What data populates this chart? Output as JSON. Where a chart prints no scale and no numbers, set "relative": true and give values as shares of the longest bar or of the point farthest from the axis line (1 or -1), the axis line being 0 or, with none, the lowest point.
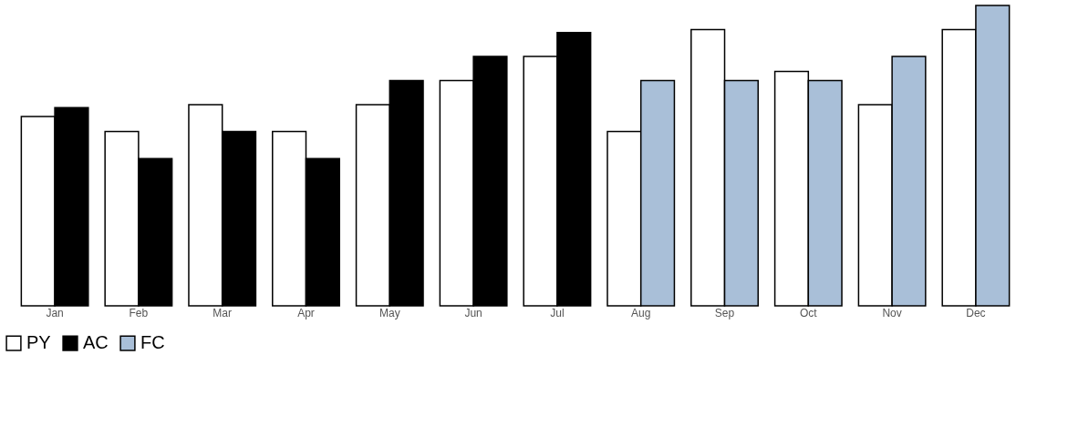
{
  "chart_data": {
    "type": "bar",
    "relative": true,
    "categories": [
      "Jan",
      "Feb",
      "Mar",
      "Apr",
      "May",
      "Jun",
      "Jul",
      "Aug",
      "Sep",
      "Oct",
      "Nov",
      "Dec"
    ],
    "series": [
      {
        "name": "PY",
        "color": "#ffffff",
        "values": [
          0.63,
          0.58,
          0.67,
          0.58,
          0.67,
          0.75,
          0.83,
          0.58,
          0.92,
          0.78,
          0.67,
          0.92
        ]
      },
      {
        "name": "AC",
        "color": "#000000",
        "values": [
          0.66,
          0.49,
          0.58,
          0.49,
          0.75,
          0.83,
          0.91,
          null,
          null,
          null,
          null,
          null
        ]
      },
      {
        "name": "FC",
        "color": "#a9bfd8",
        "values": [
          null,
          null,
          null,
          null,
          null,
          null,
          null,
          0.75,
          0.75,
          0.75,
          0.83,
          1
        ]
      }
    ],
    "legend": "bottom",
    "grid": false
  }
}
